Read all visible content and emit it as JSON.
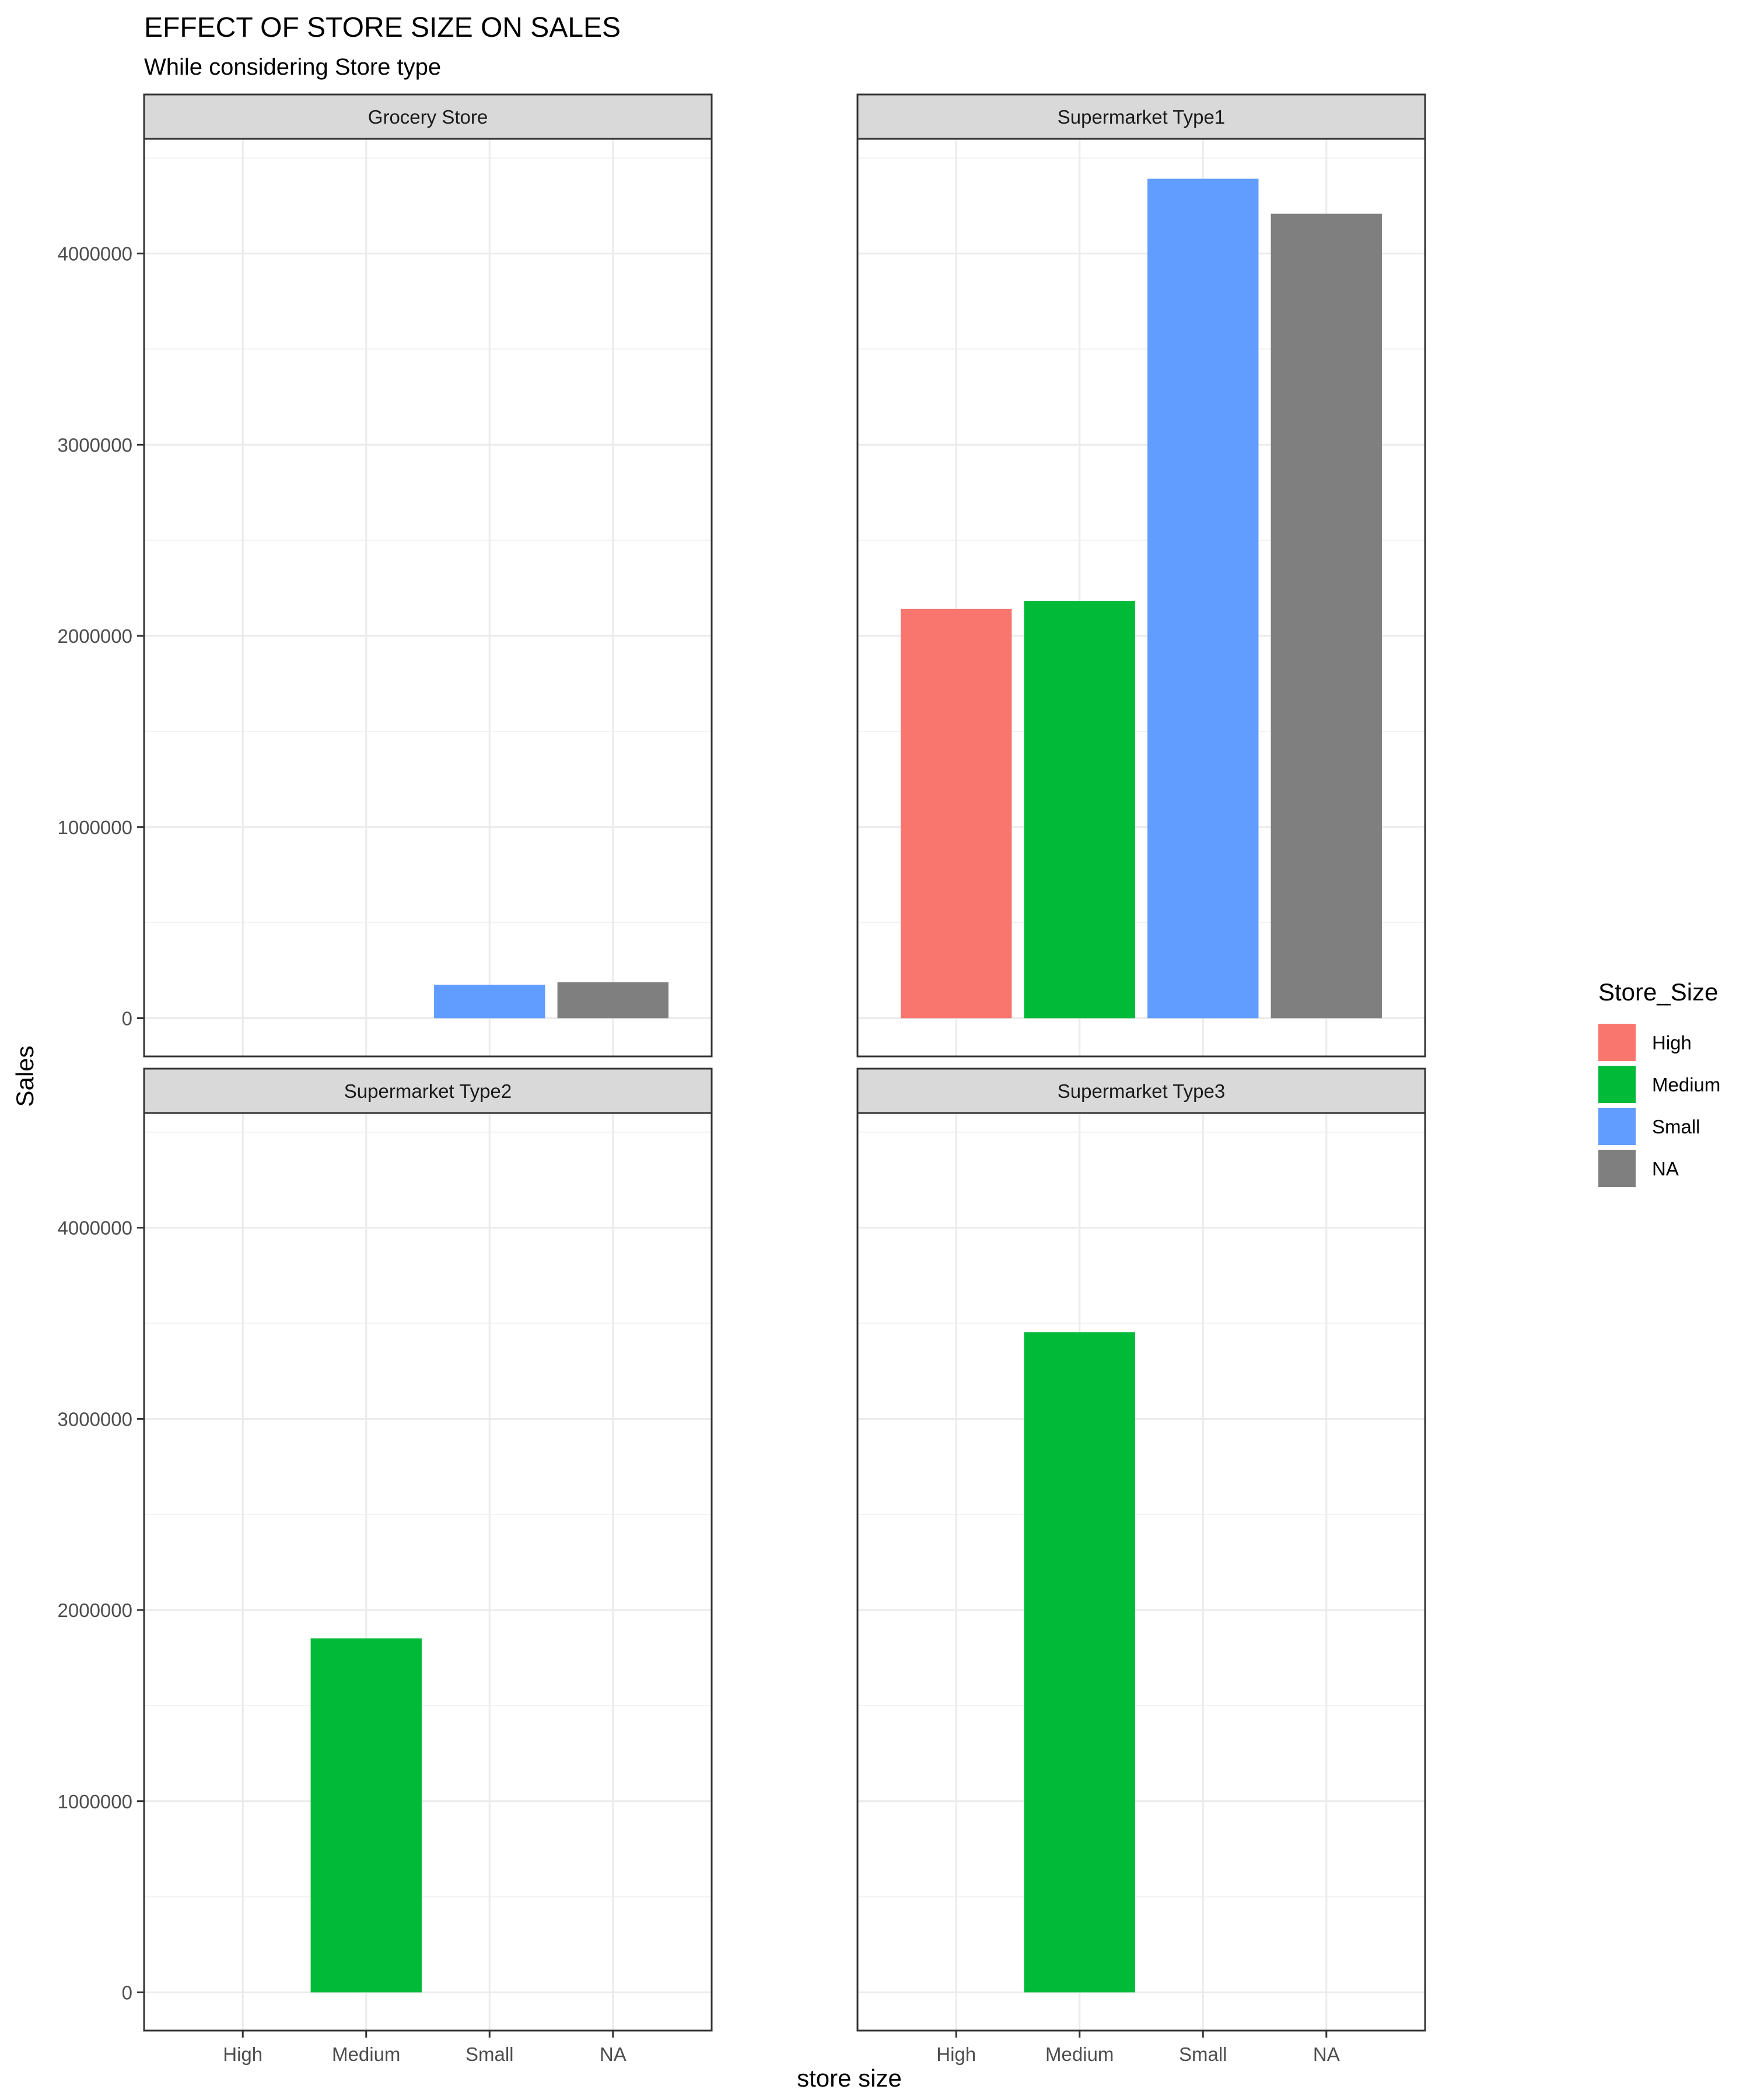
{
  "chart_data": {
    "type": "bar",
    "title": "EFFECT OF STORE SIZE ON SALES",
    "subtitle": "While considering Store type",
    "xlabel": "store size",
    "ylabel": "Sales",
    "categories": [
      "High",
      "Medium",
      "Small",
      "NA"
    ],
    "ylim": [
      -200000,
      4600000
    ],
    "yticks": [
      0,
      1000000,
      2000000,
      3000000,
      4000000
    ],
    "ytick_labels": [
      "0",
      "1000000",
      "2000000",
      "3000000",
      "4000000"
    ],
    "grid": true,
    "facets": [
      {
        "name": "Grocery Store",
        "values": [
          null,
          null,
          175000,
          188000
        ]
      },
      {
        "name": "Supermarket Type1",
        "values": [
          2141000,
          2183000,
          4391000,
          4208000
        ]
      },
      {
        "name": "Supermarket Type2",
        "values": [
          null,
          1852000,
          null,
          null
        ]
      },
      {
        "name": "Supermarket Type3",
        "values": [
          null,
          3453000,
          null,
          null
        ]
      }
    ],
    "legend": {
      "title": "Store_Size",
      "placement": "right",
      "entries": [
        "High",
        "Medium",
        "Small",
        "NA"
      ]
    },
    "colors": {
      "High": "#F8766D",
      "Medium": "#00BA38",
      "Small": "#619CFF",
      "NA": "#7F7F7F"
    }
  }
}
